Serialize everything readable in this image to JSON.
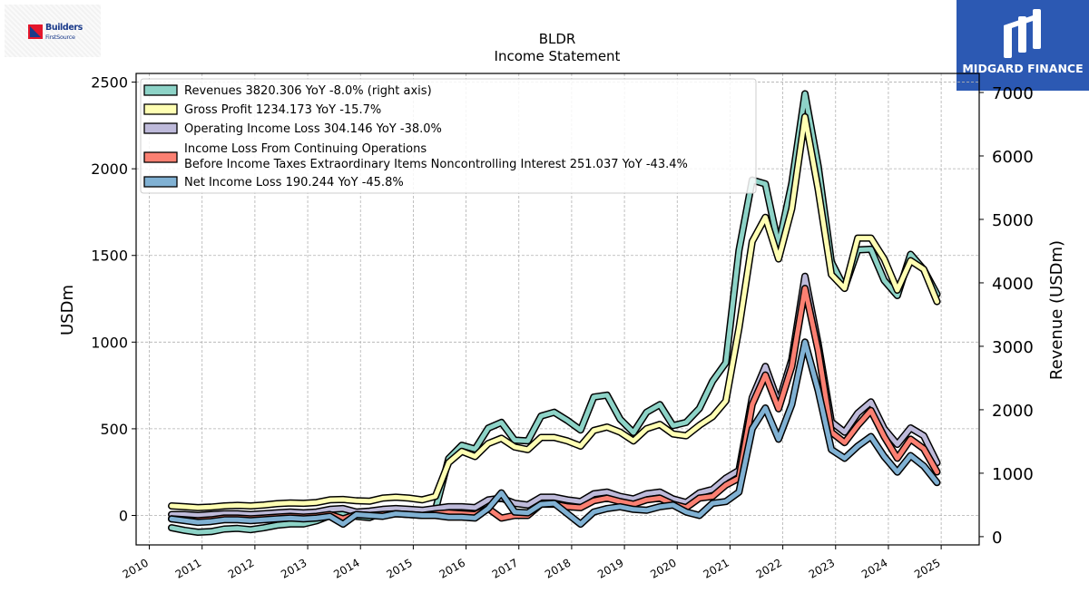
{
  "logos": {
    "left_line1": "Builders",
    "left_line2": "FirstSource",
    "right_wordmark": "MIDGARD FINANCE"
  },
  "chart_data": {
    "type": "line",
    "title": "BLDR",
    "subtitle": "Income Statement",
    "ylabel_left": "USDm",
    "ylabel_right": "Revenue (USDm)",
    "ylim_left": [
      -170,
      2550
    ],
    "ylim_right": [
      -130,
      7300
    ],
    "yticks_left": [
      0,
      500,
      1000,
      1500,
      2000,
      2500
    ],
    "yticks_right": [
      0,
      1000,
      2000,
      3000,
      4000,
      5000,
      6000,
      7000
    ],
    "xlim": [
      2009.75,
      2025.72
    ],
    "xticks": [
      2010,
      2011,
      2012,
      2013,
      2014,
      2015,
      2016,
      2017,
      2018,
      2019,
      2020,
      2021,
      2022,
      2023,
      2024,
      2025
    ],
    "xtick_labels": [
      "2010",
      "2011",
      "2012",
      "2013",
      "2014",
      "2015",
      "2016",
      "2017",
      "2018",
      "2019",
      "2020",
      "2021",
      "2022",
      "2023",
      "2024",
      "2025"
    ],
    "grid": true,
    "legend_placement": "top-left",
    "x": [
      2010.42,
      2010.67,
      2010.92,
      2011.17,
      2011.42,
      2011.67,
      2011.92,
      2012.17,
      2012.42,
      2012.67,
      2012.92,
      2013.17,
      2013.42,
      2013.67,
      2013.92,
      2014.17,
      2014.42,
      2014.67,
      2014.92,
      2015.17,
      2015.42,
      2015.67,
      2015.92,
      2016.17,
      2016.42,
      2016.67,
      2016.92,
      2017.17,
      2017.42,
      2017.67,
      2017.92,
      2018.17,
      2018.42,
      2018.67,
      2018.92,
      2019.17,
      2019.42,
      2019.67,
      2019.92,
      2020.17,
      2020.42,
      2020.67,
      2020.92,
      2021.17,
      2021.42,
      2021.67,
      2021.92,
      2022.17,
      2022.42,
      2022.67,
      2022.92,
      2023.17,
      2023.42,
      2023.67,
      2023.92,
      2024.17,
      2024.42,
      2024.67,
      2024.92
    ],
    "series": [
      {
        "name": "Revenues",
        "legend_label": "Revenues  3820.306 YoY -8.0% (right axis)",
        "axis": "right",
        "color": "#8dd3c7",
        "values": [
          140,
          100,
          70,
          80,
          120,
          130,
          110,
          140,
          180,
          200,
          200,
          250,
          330,
          360,
          320,
          300,
          380,
          390,
          360,
          340,
          420,
          1230,
          1440,
          1380,
          1710,
          1800,
          1520,
          1510,
          1900,
          1960,
          1830,
          1680,
          2200,
          2230,
          1850,
          1640,
          1960,
          2080,
          1750,
          1800,
          2020,
          2450,
          2740,
          4510,
          5620,
          5560,
          4590,
          5570,
          6980,
          5840,
          4330,
          3920,
          4520,
          4530,
          4040,
          3800,
          4450,
          4210,
          3820
        ]
      },
      {
        "name": "Gross Profit",
        "legend_label": "Gross Profit  1234.173 YoY -15.7%",
        "axis": "left",
        "color": "#ffffb3",
        "values": [
          55,
          50,
          45,
          48,
          55,
          58,
          55,
          60,
          68,
          72,
          70,
          75,
          90,
          92,
          85,
          82,
          100,
          105,
          100,
          90,
          110,
          305,
          370,
          340,
          415,
          445,
          395,
          380,
          450,
          450,
          430,
          400,
          490,
          510,
          480,
          430,
          500,
          525,
          470,
          460,
          520,
          570,
          660,
          1080,
          1580,
          1720,
          1480,
          1770,
          2300,
          1880,
          1390,
          1310,
          1600,
          1600,
          1480,
          1300,
          1470,
          1420,
          1234
        ]
      },
      {
        "name": "Operating Income Loss",
        "legend_label": "Operating Income Loss  304.146 YoY -38.0%",
        "axis": "left",
        "color": "#bebada",
        "values": [
          5,
          5,
          0,
          5,
          10,
          10,
          5,
          10,
          15,
          20,
          15,
          20,
          35,
          40,
          20,
          25,
          35,
          40,
          35,
          30,
          40,
          50,
          50,
          45,
          90,
          100,
          70,
          60,
          105,
          105,
          90,
          80,
          125,
          135,
          110,
          95,
          125,
          135,
          95,
          75,
          130,
          150,
          215,
          260,
          680,
          860,
          650,
          900,
          1380,
          990,
          540,
          480,
          590,
          655,
          500,
          410,
          505,
          460,
          304
        ]
      },
      {
        "name": "Income Loss From Continuing Operations Before Income Taxes Extraordinary Items Noncontrolling Interest",
        "legend_label_line1": "Income Loss From Continuing Operations",
        "legend_label_line2": "Before Income Taxes Extraordinary Items Noncontrolling Interest  251.037 YoY -43.4%",
        "axis": "left",
        "color": "#fb8072",
        "values": [
          -20,
          -25,
          -30,
          -25,
          -15,
          -15,
          -20,
          -15,
          -10,
          -5,
          -10,
          -5,
          5,
          -20,
          5,
          0,
          5,
          10,
          5,
          0,
          10,
          15,
          10,
          5,
          40,
          -15,
          0,
          0,
          65,
          65,
          50,
          45,
          85,
          100,
          80,
          65,
          90,
          100,
          65,
          45,
          100,
          110,
          175,
          215,
          640,
          810,
          615,
          860,
          1310,
          950,
          480,
          420,
          520,
          605,
          455,
          330,
          440,
          385,
          251
        ]
      },
      {
        "name": "Net Income Loss",
        "legend_label": "Net Income Loss  190.244 YoY -45.8%",
        "axis": "left",
        "color": "#80b1d3",
        "values": [
          -20,
          -30,
          -40,
          -35,
          -25,
          -25,
          -30,
          -25,
          -20,
          -15,
          -20,
          -15,
          -5,
          -50,
          5,
          0,
          -5,
          10,
          5,
          0,
          0,
          -10,
          -10,
          -15,
          40,
          130,
          20,
          15,
          65,
          70,
          10,
          -50,
          20,
          40,
          50,
          35,
          30,
          50,
          60,
          20,
          0,
          70,
          80,
          135,
          500,
          620,
          440,
          640,
          1000,
          720,
          380,
          330,
          400,
          455,
          340,
          250,
          345,
          285,
          190
        ]
      }
    ]
  }
}
